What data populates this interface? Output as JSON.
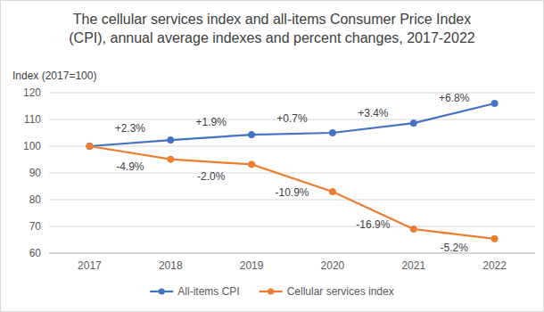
{
  "chart_data": {
    "type": "line",
    "title": "The cellular services index and all-items Consumer Price Index (CPI), annual average indexes and percent changes, 2017-2022",
    "y_label": "Index (2017=100)",
    "categories": [
      "2017",
      "2018",
      "2019",
      "2020",
      "2021",
      "2022"
    ],
    "series": [
      {
        "name": "All-items CPI",
        "color": "#4472c4",
        "marker": "circle",
        "values": [
          100,
          102.3,
          104.3,
          105.0,
          108.6,
          116.0
        ],
        "changes": [
          {
            "value": 2.3,
            "label": "+2.3%"
          },
          {
            "value": 1.9,
            "label": "+1.9%"
          },
          {
            "value": 0.7,
            "label": "+0.7%"
          },
          {
            "value": 3.4,
            "label": "+3.4%"
          },
          {
            "value": 6.8,
            "label": "+6.8%"
          }
        ]
      },
      {
        "name": "Cellular services index",
        "color": "#ed7d31",
        "marker": "circle",
        "values": [
          100,
          95.1,
          93.2,
          83.0,
          69.0,
          65.4
        ],
        "changes": [
          {
            "value": -4.9,
            "label": "-4.9%"
          },
          {
            "value": -2.0,
            "label": "-2.0%"
          },
          {
            "value": -10.9,
            "label": "-10.9%"
          },
          {
            "value": -16.9,
            "label": "-16.9%"
          },
          {
            "value": -5.2,
            "label": "-5.2%"
          }
        ]
      }
    ],
    "ylim": [
      60,
      120
    ],
    "yticks": [
      60,
      70,
      80,
      90,
      100,
      110,
      120
    ],
    "grid": true,
    "legend": "bottom"
  }
}
